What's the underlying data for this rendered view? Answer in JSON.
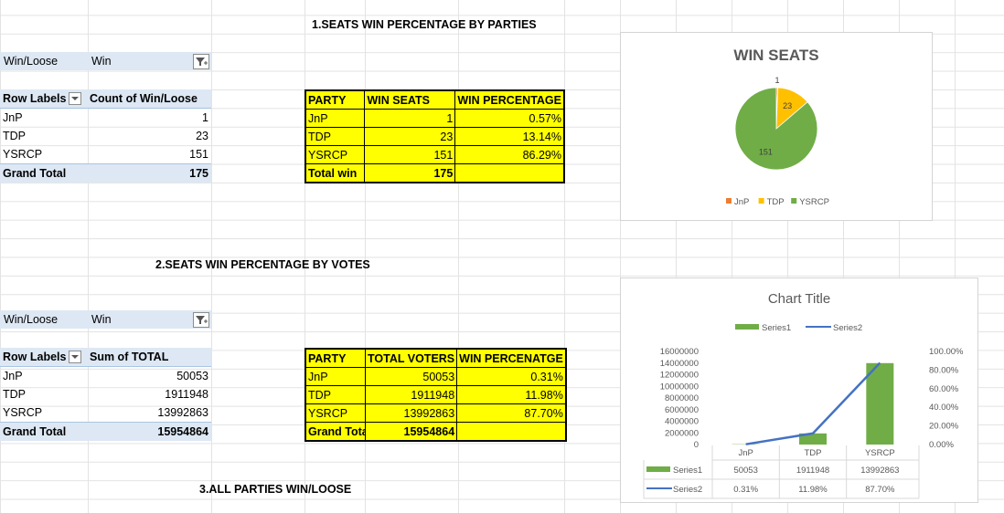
{
  "headings": {
    "h1": "1.SEATS WIN PERCENTAGE BY PARTIES",
    "h2": "2.SEATS WIN PERCENTAGE BY VOTES",
    "h3": "3.ALL PARTIES WIN/LOOSE"
  },
  "pivot1": {
    "filter_label": "Win/Loose",
    "filter_value": "Win",
    "col1": "Row Labels",
    "col2": "Count of Win/Loose",
    "rows": [
      {
        "label": "JnP",
        "value": "1"
      },
      {
        "label": "TDP",
        "value": "23"
      },
      {
        "label": "YSRCP",
        "value": "151"
      }
    ],
    "total_label": "Grand Total",
    "total_value": "175"
  },
  "table1": {
    "headers": [
      "PARTY",
      "WIN SEATS",
      "WIN PERCENTAGE"
    ],
    "rows": [
      {
        "party": "JnP",
        "val": "1",
        "pct": "0.57%"
      },
      {
        "party": "TDP",
        "val": "23",
        "pct": "13.14%"
      },
      {
        "party": "YSRCP",
        "val": "151",
        "pct": "86.29%"
      }
    ],
    "total_label": "Total win",
    "total_value": "175"
  },
  "pivot2": {
    "filter_label": "Win/Loose",
    "filter_value": "Win",
    "col1": "Row Labels",
    "col2": "Sum of  TOTAL",
    "rows": [
      {
        "label": "JnP",
        "value": "50053"
      },
      {
        "label": "TDP",
        "value": "1911948"
      },
      {
        "label": "YSRCP",
        "value": "13992863"
      }
    ],
    "total_label": "Grand Total",
    "total_value": "15954864"
  },
  "table2": {
    "headers": [
      "PARTY",
      "TOTAL VOTERS",
      "WIN PERCENATGE"
    ],
    "rows": [
      {
        "party": "JnP",
        "val": "50053",
        "pct": "0.31%"
      },
      {
        "party": "TDP",
        "val": "1911948",
        "pct": "11.98%"
      },
      {
        "party": "YSRCP",
        "val": "13992863",
        "pct": "87.70%"
      }
    ],
    "total_label": "Grand Tota",
    "total_value": "15954864"
  },
  "colors": {
    "pivot_blue": "#dde8f4",
    "yellow": "#ffff00",
    "jnp": "#ed7d31",
    "tdp": "#ffc000",
    "ysrcp": "#70ad47",
    "series2": "#4472c4"
  },
  "chart_data": [
    {
      "type": "pie",
      "title": "WIN SEATS",
      "categories": [
        "JnP",
        "TDP",
        "YSRCP"
      ],
      "values": [
        1,
        23,
        151
      ],
      "data_labels": [
        "1",
        "23",
        "151"
      ],
      "colors": [
        "#ed7d31",
        "#ffc000",
        "#70ad47"
      ],
      "legend": "bottom"
    },
    {
      "type": "bar",
      "title": "Chart Title",
      "categories": [
        "JnP",
        "TDP",
        "YSRCP"
      ],
      "series": [
        {
          "name": "Series1",
          "type": "bar",
          "axis": "left",
          "values": [
            50053,
            1911948,
            13992863
          ],
          "labels": [
            "50053",
            "1911948",
            "13992863"
          ],
          "color": "#70ad47"
        },
        {
          "name": "Series2",
          "type": "line",
          "axis": "right",
          "values": [
            0.0031,
            0.1198,
            0.877
          ],
          "labels": [
            "0.31%",
            "11.98%",
            "87.70%"
          ],
          "color": "#4472c4"
        }
      ],
      "ylim_left": [
        0,
        16000000
      ],
      "ylim_right": [
        0,
        1
      ],
      "left_ticks": [
        "0",
        "2000000",
        "4000000",
        "6000000",
        "8000000",
        "10000000",
        "12000000",
        "14000000",
        "16000000"
      ],
      "right_ticks": [
        "0.00%",
        "20.00%",
        "40.00%",
        "60.00%",
        "80.00%",
        "100.00%"
      ],
      "legend": "top",
      "data_table": true
    }
  ]
}
